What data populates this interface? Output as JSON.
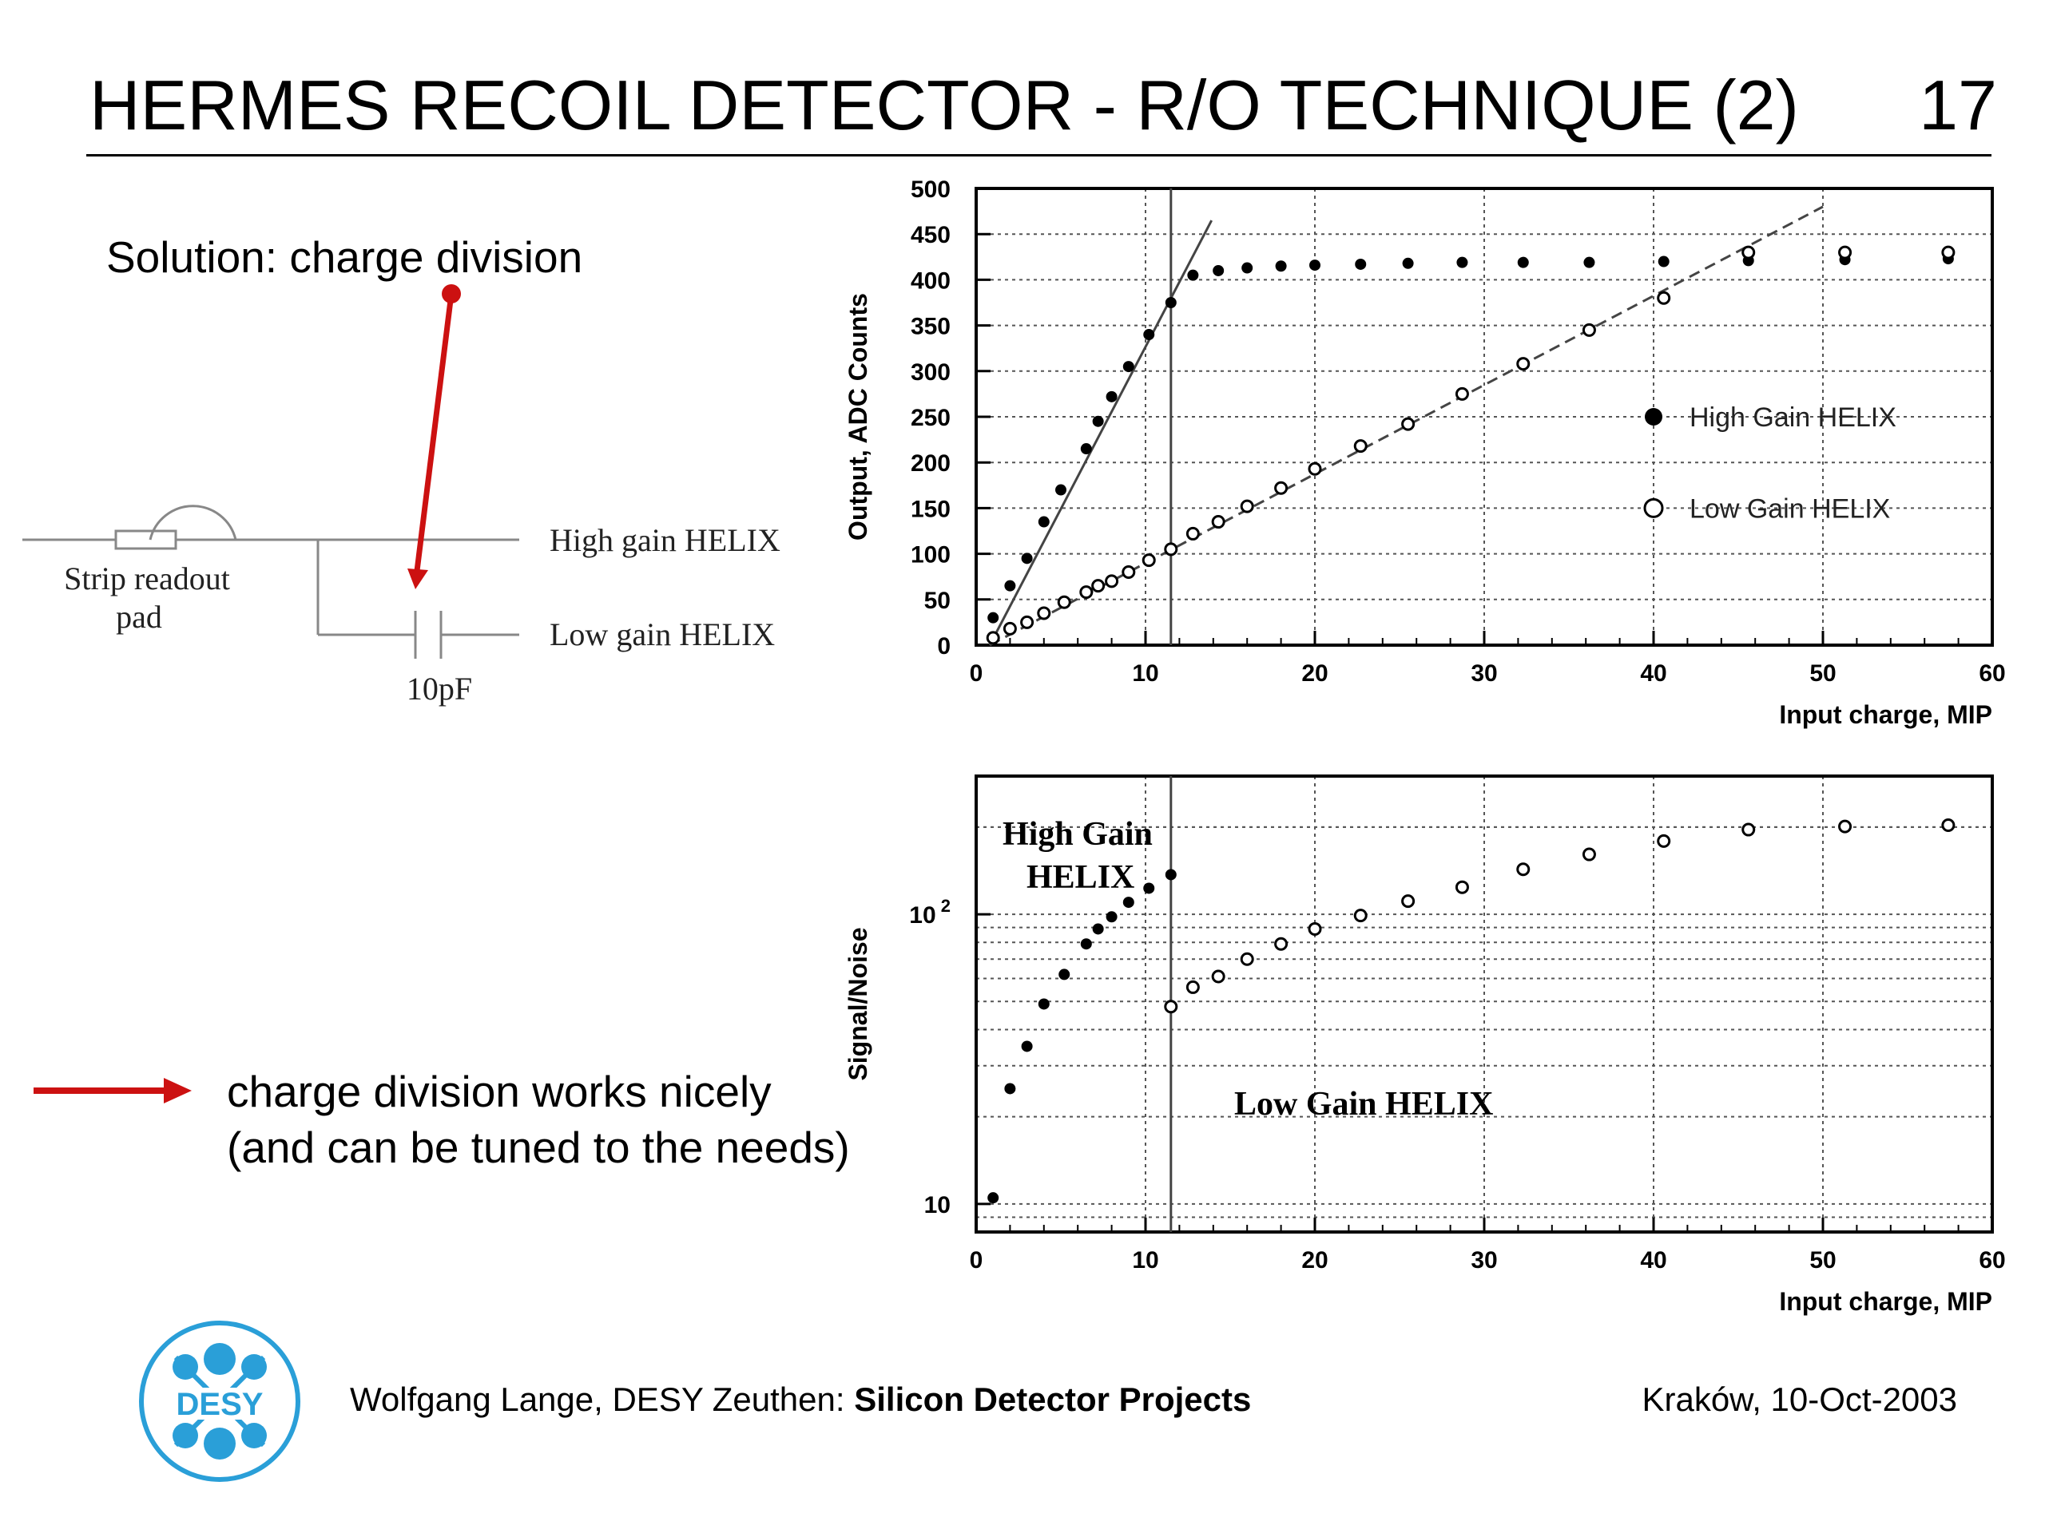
{
  "header": {
    "title": "HERMES RECOIL DETECTOR - R/O TECHNIQUE (2)",
    "slide_number": "17"
  },
  "left": {
    "solution": "Solution: charge division",
    "circuit": {
      "high_gain": "High gain HELIX",
      "low_gain": "Low gain HELIX",
      "pad_line1": "Strip readout",
      "pad_line2": "pad",
      "capacitor": "10pF"
    },
    "conclusion_line1": "charge division works nicely",
    "conclusion_line2": "(and can be tuned to the needs)"
  },
  "colors": {
    "accent_red": "#cc1111",
    "desy_blue": "#2a9fd8"
  },
  "logo": {
    "text": "DESY"
  },
  "footer": {
    "author": "Wolfgang Lange, DESY Zeuthen: ",
    "project": "Silicon Detector Projects",
    "date": "Kraków, 10-Oct-2003"
  },
  "chart_data": [
    {
      "type": "scatter",
      "xlabel": "Input charge, MIP",
      "ylabel": "Output, ADC Counts",
      "xlim": [
        0,
        60
      ],
      "ylim": [
        0,
        500
      ],
      "xticks": [
        0,
        10,
        20,
        30,
        40,
        50,
        60
      ],
      "yticks": [
        0,
        50,
        100,
        150,
        200,
        250,
        300,
        350,
        400,
        450,
        500
      ],
      "grid": true,
      "legend_position": "right",
      "vertical_line_x": 11.5,
      "series": [
        {
          "name": "High Gain HELIX",
          "marker": "filled",
          "x": [
            1,
            2,
            3,
            4,
            5,
            6.5,
            7.2,
            8,
            9,
            10.2,
            11.5,
            12.8,
            14.3,
            16,
            18,
            20,
            22.7,
            25.5,
            28.7,
            32.3,
            36.2,
            40.6,
            45.6,
            51.3,
            57.4
          ],
          "y": [
            30,
            65,
            95,
            135,
            170,
            215,
            245,
            272,
            305,
            340,
            375,
            405,
            410,
            413,
            415,
            416,
            417,
            418,
            419,
            419,
            419,
            420,
            421,
            422,
            423
          ]
        },
        {
          "name": "Low Gain HELIX",
          "marker": "open",
          "x": [
            1,
            2,
            3,
            4,
            5.2,
            6.5,
            7.2,
            8,
            9,
            10.2,
            11.5,
            12.8,
            14.3,
            16,
            18,
            20,
            22.7,
            25.5,
            28.7,
            32.3,
            36.2,
            40.6,
            45.6,
            51.3,
            57.4
          ],
          "y": [
            8,
            18,
            25,
            35,
            47,
            58,
            65,
            70,
            80,
            93,
            105,
            122,
            135,
            152,
            172,
            193,
            218,
            242,
            275,
            308,
            345,
            380,
            430,
            430,
            430
          ]
        }
      ],
      "fit_lines": [
        {
          "name": "high gain fit",
          "x": [
            0.8,
            13.9
          ],
          "y": [
            0,
            465
          ]
        },
        {
          "name": "low gain fit",
          "x": [
            0.8,
            50
          ],
          "y": [
            0,
            480
          ]
        }
      ]
    },
    {
      "type": "scatter",
      "xlabel": "Input charge, MIP",
      "ylabel": "Signal/Noise",
      "xlim": [
        0,
        60
      ],
      "ylim": [
        8,
        300
      ],
      "yscale": "log",
      "xticks": [
        0,
        10,
        20,
        30,
        40,
        50,
        60
      ],
      "yticks": [
        10,
        100
      ],
      "ytick_labels": [
        "10",
        "10 2"
      ],
      "grid": true,
      "vertical_line_x": 11.5,
      "annotations": [
        "High Gain",
        "HELIX",
        "Low Gain HELIX"
      ],
      "series": [
        {
          "name": "High Gain HELIX",
          "marker": "filled",
          "x": [
            1,
            2,
            3,
            4,
            5.2,
            6.5,
            7.2,
            8,
            9,
            10.2,
            11.5
          ],
          "y": [
            10.5,
            25,
            35,
            49,
            62,
            79,
            89,
            98,
            110,
            123,
            137
          ]
        },
        {
          "name": "Low Gain HELIX",
          "marker": "open",
          "x": [
            11.5,
            12.8,
            14.3,
            16,
            18,
            20,
            22.7,
            25.5,
            28.7,
            32.3,
            36.2,
            40.6,
            45.6,
            51.3,
            57.4
          ],
          "y": [
            48,
            56,
            61,
            70,
            79,
            89,
            99,
            111,
            124,
            143,
            161,
            179,
            196,
            201,
            203
          ]
        }
      ]
    }
  ]
}
